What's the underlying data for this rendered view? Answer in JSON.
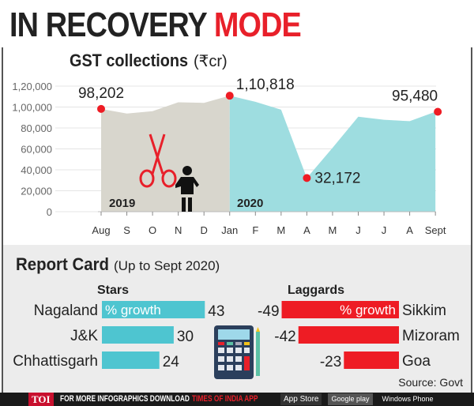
{
  "headline": {
    "part1": "IN RECOVERY",
    "part2": "MODE"
  },
  "chart_data": [
    {
      "type": "area",
      "title": "GST collections",
      "unit": "(₹cr)",
      "x": [
        "Aug",
        "S",
        "O",
        "N",
        "D",
        "Jan",
        "F",
        "M",
        "A",
        "M",
        "J",
        "J",
        "A",
        "Sept"
      ],
      "y": [
        98202,
        93800,
        96000,
        104500,
        104000,
        110818,
        105000,
        97500,
        32172,
        61000,
        90800,
        87800,
        86500,
        95480
      ],
      "labeled_points": [
        {
          "index": 0,
          "label": "98,202"
        },
        {
          "index": 5,
          "label": "1,10,818"
        },
        {
          "index": 8,
          "label": "32,172"
        },
        {
          "index": 13,
          "label": "95,480"
        }
      ],
      "yticks": [
        "0",
        "20,000",
        "40,000",
        "60,000",
        "80,000",
        "1,00,000",
        "1,20,000"
      ],
      "ylim": [
        0,
        120000
      ],
      "periods": [
        {
          "label": "2019",
          "color": "#d8d6cd"
        },
        {
          "label": "2020",
          "color": "#9edde0"
        }
      ],
      "grid": true
    },
    {
      "type": "bar",
      "title": "Report Card",
      "subtitle": "(Up to Sept 2020)",
      "bar_label": "% growth",
      "groups": [
        {
          "name": "Stars",
          "color": "#4ec5d0",
          "categories": [
            "Nagaland",
            "J&K",
            "Chhattisgarh"
          ],
          "values": [
            43,
            30,
            24
          ],
          "labels": [
            "43",
            "30",
            "24"
          ]
        },
        {
          "name": "Laggards",
          "color": "#ee1c24",
          "categories": [
            "Sikkim",
            "Mizoram",
            "Goa"
          ],
          "values": [
            -49,
            -42,
            -23
          ],
          "labels": [
            "-49",
            "-42",
            "-23"
          ]
        }
      ]
    }
  ],
  "source": "Source: Govt",
  "footer": {
    "logo": "TOI",
    "text": "FOR MORE  INFOGRAPHICS DOWNLOAD",
    "app": "TIMES OF INDIA  APP",
    "store1": "App Store",
    "store2": "Google play",
    "store3": "Windows Phone"
  }
}
